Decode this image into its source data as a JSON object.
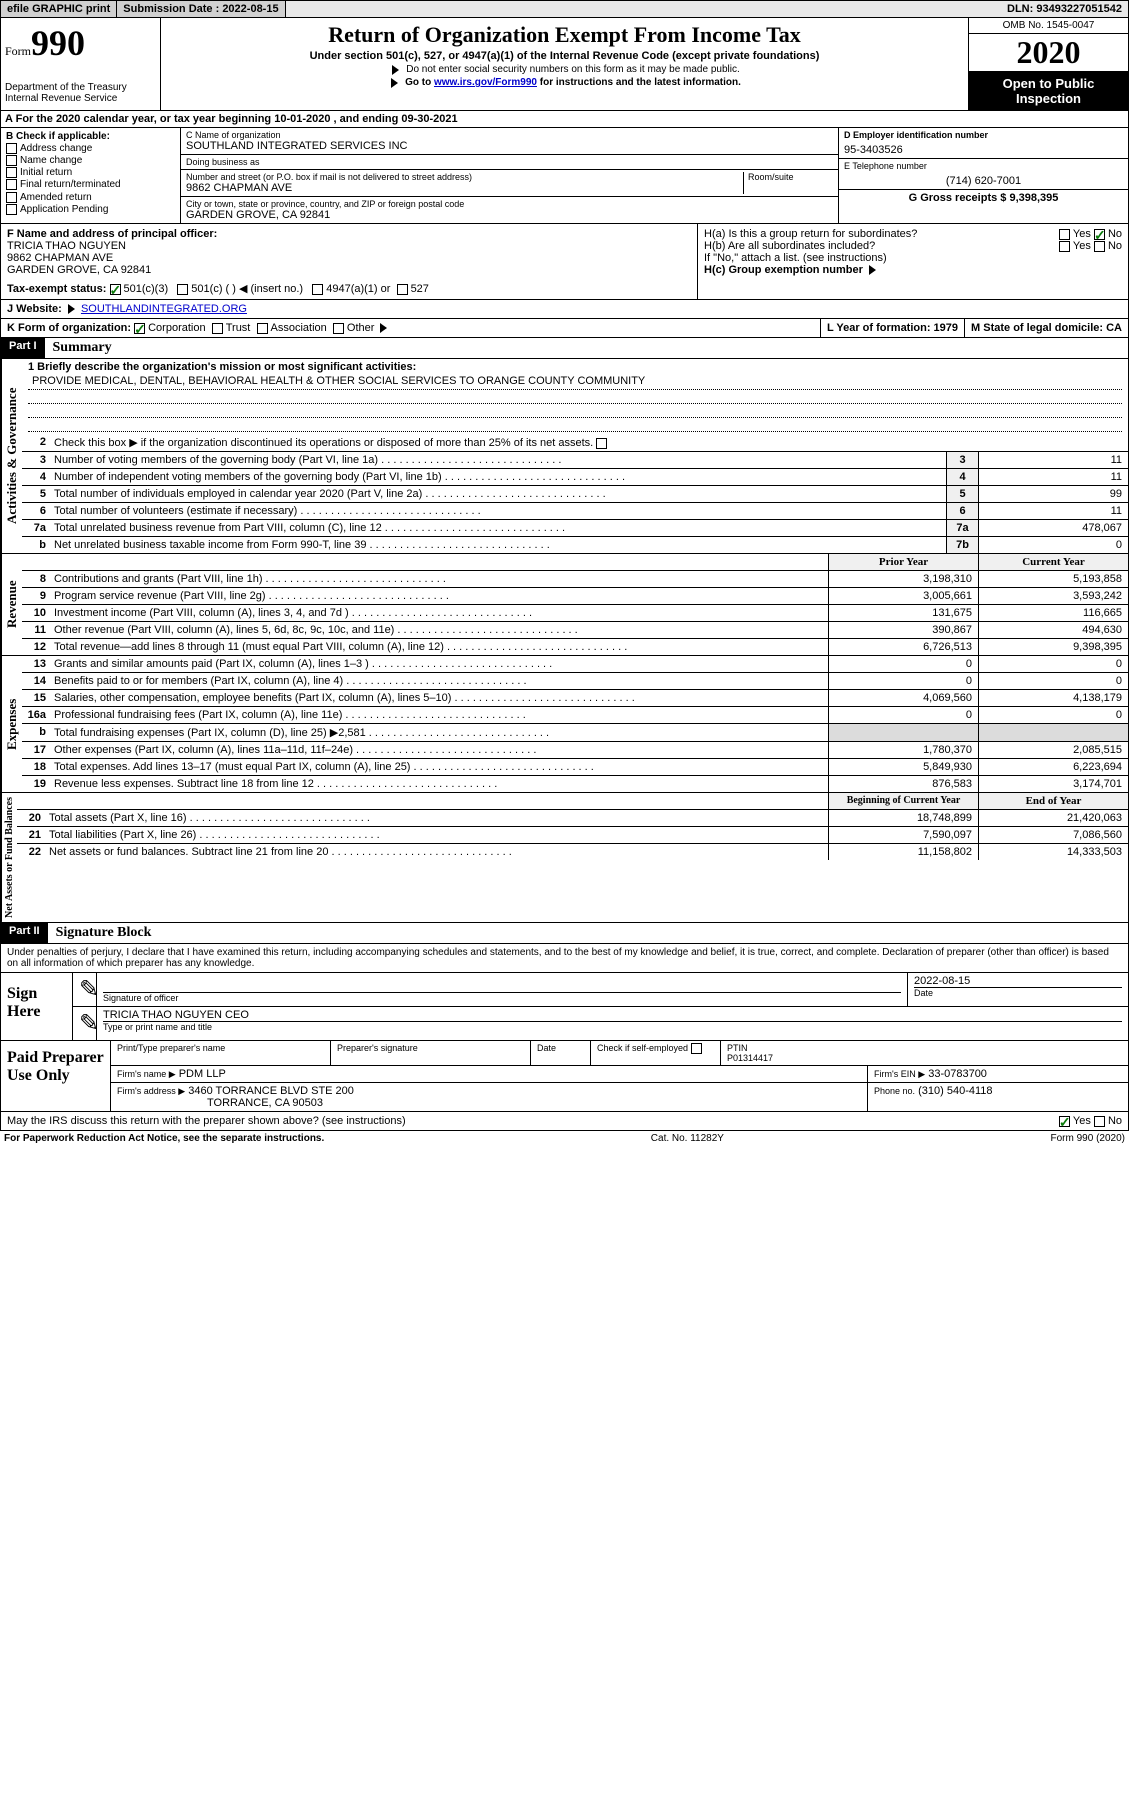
{
  "topbar": {
    "efile": "efile GRAPHIC print",
    "submission_label": "Submission Date : 2022-08-15",
    "dln": "DLN: 93493227051542"
  },
  "header": {
    "form_prefix": "Form",
    "form_number": "990",
    "dept1": "Department of the Treasury",
    "dept2": "Internal Revenue Service",
    "title": "Return of Organization Exempt From Income Tax",
    "sub1": "Under section 501(c), 527, or 4947(a)(1) of the Internal Revenue Code (except private foundations)",
    "sub2": "Do not enter social security numbers on this form as it may be made public.",
    "sub3a": "Go to ",
    "sub3_link": "www.irs.gov/Form990",
    "sub3b": " for instructions and the latest information.",
    "omb": "OMB No. 1545-0047",
    "year": "2020",
    "open": "Open to Public Inspection"
  },
  "A": {
    "text": "For the 2020 calendar year, or tax year beginning 10-01-2020   , and ending 09-30-2021"
  },
  "B": {
    "label": "B Check if applicable:",
    "items": [
      "Address change",
      "Name change",
      "Initial return",
      "Final return/terminated",
      "Amended return",
      "Application Pending"
    ]
  },
  "C": {
    "name_label": "C Name of organization",
    "name": "SOUTHLAND INTEGRATED SERVICES INC",
    "dba_label": "Doing business as",
    "street_label": "Number and street (or P.O. box if mail is not delivered to street address)",
    "room_label": "Room/suite",
    "street": "9862 CHAPMAN AVE",
    "city_label": "City or town, state or province, country, and ZIP or foreign postal code",
    "city": "GARDEN GROVE, CA  92841"
  },
  "D": {
    "label": "D Employer identification number",
    "val": "95-3403526"
  },
  "E": {
    "label": "E Telephone number",
    "val": "(714) 620-7001"
  },
  "G": {
    "label": "G Gross receipts $ 9,398,395"
  },
  "F": {
    "label": "F  Name and address of principal officer:",
    "name": "TRICIA THAO NGUYEN",
    "street": "9862 CHAPMAN AVE",
    "city": "GARDEN GROVE, CA  92841"
  },
  "H": {
    "a": "H(a)  Is this a group return for subordinates?",
    "b": "H(b)  Are all subordinates included?",
    "b2": "If \"No,\" attach a list. (see instructions)",
    "c": "H(c)  Group exemption number",
    "yes": "Yes",
    "no": "No"
  },
  "I": {
    "label": "Tax-exempt status:",
    "opts": [
      "501(c)(3)",
      "501(c) (  ) ◀ (insert no.)",
      "4947(a)(1) or",
      "527"
    ]
  },
  "J": {
    "label": "J   Website:",
    "val": "SOUTHLANDINTEGRATED.ORG"
  },
  "K": {
    "label": "K Form of organization:",
    "opts": [
      "Corporation",
      "Trust",
      "Association",
      "Other"
    ]
  },
  "L": {
    "label": "L Year of formation: 1979"
  },
  "M": {
    "label": "M State of legal domicile: CA"
  },
  "part1": {
    "hdr": "Part I",
    "title": "Summary",
    "vlabels": [
      "Activities & Governance",
      "Revenue",
      "Expenses",
      "Net Assets or Fund Balances"
    ],
    "line1_label": "1   Briefly describe the organization's mission or most significant activities:",
    "mission": "PROVIDE MEDICAL, DENTAL, BEHAVIORAL HEALTH & OTHER SOCIAL SERVICES TO ORANGE COUNTY COMMUNITY",
    "line2": "Check this box ▶       if the organization discontinued its operations or disposed of more than 25% of its net assets.",
    "gov_lines": [
      {
        "n": "3",
        "d": "Number of voting members of the governing body (Part VI, line 1a)",
        "box": "3",
        "v": "11"
      },
      {
        "n": "4",
        "d": "Number of independent voting members of the governing body (Part VI, line 1b)",
        "box": "4",
        "v": "11"
      },
      {
        "n": "5",
        "d": "Total number of individuals employed in calendar year 2020 (Part V, line 2a)",
        "box": "5",
        "v": "99"
      },
      {
        "n": "6",
        "d": "Total number of volunteers (estimate if necessary)",
        "box": "6",
        "v": "11"
      },
      {
        "n": "7a",
        "d": "Total unrelated business revenue from Part VIII, column (C), line 12",
        "box": "7a",
        "v": "478,067"
      },
      {
        "n": "b",
        "d": "Net unrelated business taxable income from Form 990-T, line 39",
        "box": "7b",
        "v": "0"
      }
    ],
    "col_prior": "Prior Year",
    "col_current": "Current Year",
    "rev_lines": [
      {
        "n": "8",
        "d": "Contributions and grants (Part VIII, line 1h)",
        "p": "3,198,310",
        "c": "5,193,858"
      },
      {
        "n": "9",
        "d": "Program service revenue (Part VIII, line 2g)",
        "p": "3,005,661",
        "c": "3,593,242"
      },
      {
        "n": "10",
        "d": "Investment income (Part VIII, column (A), lines 3, 4, and 7d )",
        "p": "131,675",
        "c": "116,665"
      },
      {
        "n": "11",
        "d": "Other revenue (Part VIII, column (A), lines 5, 6d, 8c, 9c, 10c, and 11e)",
        "p": "390,867",
        "c": "494,630"
      },
      {
        "n": "12",
        "d": "Total revenue—add lines 8 through 11 (must equal Part VIII, column (A), line 12)",
        "p": "6,726,513",
        "c": "9,398,395"
      }
    ],
    "exp_lines": [
      {
        "n": "13",
        "d": "Grants and similar amounts paid (Part IX, column (A), lines 1–3 )",
        "p": "0",
        "c": "0"
      },
      {
        "n": "14",
        "d": "Benefits paid to or for members (Part IX, column (A), line 4)",
        "p": "0",
        "c": "0"
      },
      {
        "n": "15",
        "d": "Salaries, other compensation, employee benefits (Part IX, column (A), lines 5–10)",
        "p": "4,069,560",
        "c": "4,138,179"
      },
      {
        "n": "16a",
        "d": "Professional fundraising fees (Part IX, column (A), line 11e)",
        "p": "0",
        "c": "0"
      },
      {
        "n": "b",
        "d": "Total fundraising expenses (Part IX, column (D), line 25) ▶2,581",
        "p": "",
        "c": "",
        "gray": true
      },
      {
        "n": "17",
        "d": "Other expenses (Part IX, column (A), lines 11a–11d, 11f–24e)",
        "p": "1,780,370",
        "c": "2,085,515"
      },
      {
        "n": "18",
        "d": "Total expenses. Add lines 13–17 (must equal Part IX, column (A), line 25)",
        "p": "5,849,930",
        "c": "6,223,694"
      },
      {
        "n": "19",
        "d": "Revenue less expenses. Subtract line 18 from line 12",
        "p": "876,583",
        "c": "3,174,701"
      }
    ],
    "col_begin": "Beginning of Current Year",
    "col_end": "End of Year",
    "net_lines": [
      {
        "n": "20",
        "d": "Total assets (Part X, line 16)",
        "p": "18,748,899",
        "c": "21,420,063"
      },
      {
        "n": "21",
        "d": "Total liabilities (Part X, line 26)",
        "p": "7,590,097",
        "c": "7,086,560"
      },
      {
        "n": "22",
        "d": "Net assets or fund balances. Subtract line 21 from line 20",
        "p": "11,158,802",
        "c": "14,333,503"
      }
    ]
  },
  "part2": {
    "hdr": "Part II",
    "title": "Signature Block",
    "decl": "Under penalties of perjury, I declare that I have examined this return, including accompanying schedules and statements, and to the best of my knowledge and belief, it is true, correct, and complete. Declaration of preparer (other than officer) is based on all information of which preparer has any knowledge."
  },
  "sign": {
    "left": "Sign Here",
    "sig_officer": "Signature of officer",
    "date_label": "Date",
    "date": "2022-08-15",
    "name": "TRICIA THAO NGUYEN CEO",
    "name_label": "Type or print name and title"
  },
  "paid": {
    "left": "Paid Preparer Use Only",
    "h1": "Print/Type preparer's name",
    "h2": "Preparer's signature",
    "h3": "Date",
    "h4_check": "Check        if self-employed",
    "h5": "PTIN",
    "ptin": "P01314417",
    "firm_label": "Firm's name    ▶",
    "firm": "PDM LLP",
    "ein_label": "Firm's EIN ▶",
    "ein": "33-0783700",
    "addr_label": "Firm's address ▶",
    "addr1": "3460 TORRANCE BLVD STE 200",
    "addr2": "TORRANCE, CA  90503",
    "phone_label": "Phone no.",
    "phone": "(310) 540-4118"
  },
  "irs_discuss": "May the IRS discuss this return with the preparer shown above? (see instructions)",
  "footer": {
    "left": "For Paperwork Reduction Act Notice, see the separate instructions.",
    "mid": "Cat. No. 11282Y",
    "right": "Form 990 (2020)"
  }
}
